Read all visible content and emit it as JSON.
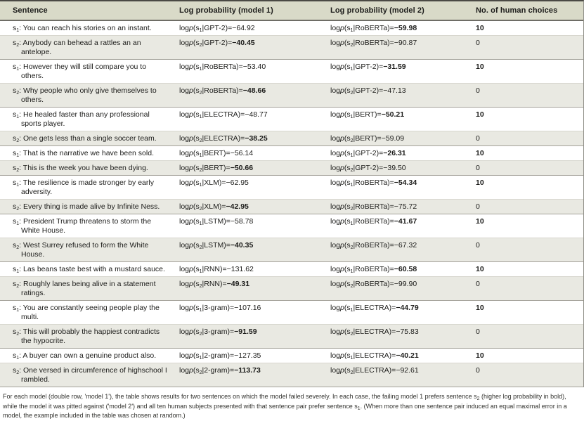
{
  "colors": {
    "header_bg": "#d9dac8",
    "shaded_row_bg": "#e9e9e2",
    "rule_top": "#4a4944",
    "rule_head": "#6e6d66",
    "rule_pair": "#a3a199",
    "rule_light": "#d8d7cf",
    "rule_mid": "#908f88",
    "text": "#1c1c1a"
  },
  "table": {
    "headers": [
      "Sentence",
      "Log probability (model 1)",
      "Log probability (model 2)",
      "No. of human choices"
    ],
    "rows": [
      {
        "s_sub": "1",
        "sentence": "You can reach his stories on an instant.",
        "m1_model": "GPT-2",
        "m1_value": "−64.92",
        "m1_bold": false,
        "m2_model": "RoBERTa",
        "m2_value": "−59.98",
        "m2_bold": true,
        "choices": "10",
        "choices_bold": true
      },
      {
        "s_sub": "2",
        "sentence": "Anybody can behead a rattles an an antelope.",
        "m1_model": "GPT-2",
        "m1_value": "−40.45",
        "m1_bold": true,
        "m2_model": "RoBERTa",
        "m2_value": "−90.87",
        "m2_bold": false,
        "choices": "0",
        "choices_bold": false
      },
      {
        "s_sub": "1",
        "sentence": "However they will still compare you to others.",
        "m1_model": "RoBERTa",
        "m1_value": "−53.40",
        "m1_bold": false,
        "m2_model": "GPT-2",
        "m2_value": "−31.59",
        "m2_bold": true,
        "choices": "10",
        "choices_bold": true
      },
      {
        "s_sub": "2",
        "sentence": "Why people who only give themselves to others.",
        "m1_model": "RoBERTa",
        "m1_value": "−48.66",
        "m1_bold": true,
        "m2_model": "GPT-2",
        "m2_value": "−47.13",
        "m2_bold": false,
        "choices": "0",
        "choices_bold": false
      },
      {
        "s_sub": "1",
        "sentence": "He healed faster than any professional sports player.",
        "m1_model": "ELECTRA",
        "m1_value": "−48.77",
        "m1_bold": false,
        "m2_model": "BERT",
        "m2_value": "−50.21",
        "m2_bold": true,
        "choices": "10",
        "choices_bold": true
      },
      {
        "s_sub": "2",
        "sentence": "One gets less than a single soccer team.",
        "m1_model": "ELECTRA",
        "m1_value": "−38.25",
        "m1_bold": true,
        "m2_model": "BERT",
        "m2_value": "−59.09",
        "m2_bold": false,
        "choices": "0",
        "choices_bold": false
      },
      {
        "s_sub": "1",
        "sentence": "That is the narrative we have been sold.",
        "m1_model": "BERT",
        "m1_value": "−56.14",
        "m1_bold": false,
        "m2_model": "GPT-2",
        "m2_value": "−26.31",
        "m2_bold": true,
        "choices": "10",
        "choices_bold": true
      },
      {
        "s_sub": "2",
        "sentence": "This is the week you have been dying.",
        "m1_model": "BERT",
        "m1_value": "−50.66",
        "m1_bold": true,
        "m2_model": "GPT-2",
        "m2_value": "−39.50",
        "m2_bold": false,
        "choices": "0",
        "choices_bold": false
      },
      {
        "s_sub": "1",
        "sentence": "The resilience is made stronger by early adversity.",
        "m1_model": "XLM",
        "m1_value": "−62.95",
        "m1_bold": false,
        "m2_model": "RoBERTa",
        "m2_value": "−54.34",
        "m2_bold": true,
        "choices": "10",
        "choices_bold": true
      },
      {
        "s_sub": "2",
        "sentence": "Every thing is made alive by Infinite Ness.",
        "m1_model": "XLM",
        "m1_value": "−42.95",
        "m1_bold": true,
        "m2_model": "RoBERTa",
        "m2_value": "−75.72",
        "m2_bold": false,
        "choices": "0",
        "choices_bold": false
      },
      {
        "s_sub": "1",
        "sentence": "President Trump threatens to storm the White House.",
        "m1_model": "LSTM",
        "m1_value": "−58.78",
        "m1_bold": false,
        "m2_model": "RoBERTa",
        "m2_value": "−41.67",
        "m2_bold": true,
        "choices": "10",
        "choices_bold": true
      },
      {
        "s_sub": "2",
        "sentence": "West Surrey refused to form the White House.",
        "m1_model": "LSTM",
        "m1_value": "−40.35",
        "m1_bold": true,
        "m2_model": "RoBERTa",
        "m2_value": "−67.32",
        "m2_bold": false,
        "choices": "0",
        "choices_bold": false
      },
      {
        "s_sub": "1",
        "sentence": "Las beans taste best with a mustard sauce.",
        "m1_model": "RNN",
        "m1_value": "−131.62",
        "m1_bold": false,
        "m2_model": "RoBERTa",
        "m2_value": "−60.58",
        "m2_bold": true,
        "choices": "10",
        "choices_bold": true
      },
      {
        "s_sub": "2",
        "sentence": "Roughly lanes being alive in a statement ratings.",
        "m1_model": "RNN",
        "m1_value": "−49.31",
        "m1_bold": true,
        "m2_model": "RoBERTa",
        "m2_value": "−99.90",
        "m2_bold": false,
        "choices": "0",
        "choices_bold": false
      },
      {
        "s_sub": "1",
        "sentence": "You are constantly seeing people play the multi.",
        "m1_model": "3-gram",
        "m1_value": "−107.16",
        "m1_bold": false,
        "m2_model": "ELECTRA",
        "m2_value": "−44.79",
        "m2_bold": true,
        "choices": "10",
        "choices_bold": true
      },
      {
        "s_sub": "2",
        "sentence": "This will probably the happiest contradicts the hypocrite.",
        "m1_model": "3-gram",
        "m1_value": "−91.59",
        "m1_bold": true,
        "m2_model": "ELECTRA",
        "m2_value": "−75.83",
        "m2_bold": false,
        "choices": "0",
        "choices_bold": false
      },
      {
        "s_sub": "1",
        "sentence": "A buyer can own a genuine product also.",
        "m1_model": "2-gram",
        "m1_value": "−127.35",
        "m1_bold": false,
        "m2_model": "ELECTRA",
        "m2_value": "−40.21",
        "m2_bold": true,
        "choices": "10",
        "choices_bold": true
      },
      {
        "s_sub": "2",
        "sentence": "One versed in circumference of highschool I rambled.",
        "m1_model": "2-gram",
        "m1_value": "−113.73",
        "m1_bold": true,
        "m2_model": "ELECTRA",
        "m2_value": "−92.61",
        "m2_bold": false,
        "choices": "0",
        "choices_bold": false
      }
    ]
  },
  "caption": {
    "segments": [
      {
        "t": "For each model (double row, 'model 1'), the table shows results for two sentences on which the model failed severely. In each case, the failing model 1 prefers sentence s"
      },
      {
        "t": "2",
        "sub": true
      },
      {
        "t": " (higher log probability in bold), while the model it was pitted against ('model 2') and all ten human subjects presented with that sentence pair prefer sentence s"
      },
      {
        "t": "1",
        "sub": true
      },
      {
        "t": ". (When more than one sentence pair induced an equal maximal error in a model, the example included in the table was chosen at random.)"
      }
    ]
  }
}
